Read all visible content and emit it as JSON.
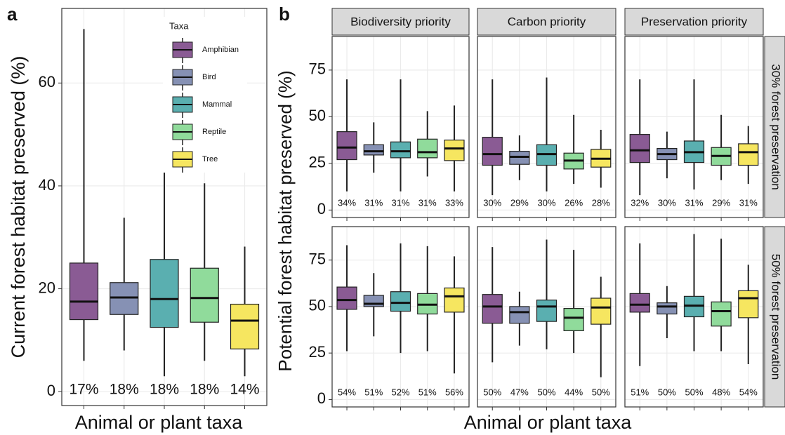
{
  "chart_data": [
    {
      "type": "box",
      "panel_label": "a",
      "ylabel": "Current forest habitat preserved (%)",
      "xlabel": "Animal or plant taxa",
      "legend_title": "Taxa",
      "categories": [
        "Amphibian",
        "Bird",
        "Mammal",
        "Reptile",
        "Tree"
      ],
      "colors": [
        "#8a5b94",
        "#8691b4",
        "#5aafb0",
        "#90db9b",
        "#f6e660"
      ],
      "stats": [
        [
          6,
          14,
          17.5,
          25,
          70.5
        ],
        [
          8,
          15,
          18.3,
          21.2,
          33.8
        ],
        [
          3,
          12.5,
          18,
          25.7,
          56.5
        ],
        [
          6,
          13.5,
          18.2,
          24,
          40.5
        ],
        [
          3,
          8.3,
          13.8,
          17,
          28.2
        ]
      ],
      "means": [
        17,
        18,
        18,
        18,
        14
      ],
      "value_labels": [
        "17%",
        "18%",
        "18%",
        "18%",
        "14%"
      ],
      "ylim": [
        -2.7,
        74.5
      ],
      "yticks": [
        0,
        20,
        40,
        60
      ],
      "grid": true
    },
    {
      "type": "box-facets",
      "panel_label": "b",
      "ylabel": "Potential forest habitat preserved (%)",
      "xlabel": "Animal or plant taxa",
      "columns": [
        "Biodiversity priority",
        "Carbon priority",
        "Preservation priority"
      ],
      "rows": [
        "30% forest preservation",
        "50% forest preservation"
      ],
      "ylim": [
        -4,
        93
      ],
      "yticks": [
        0,
        25,
        50,
        75
      ],
      "grid": true,
      "facets": [
        {
          "stats": [
            [
              10,
              27,
              33.5,
              42,
              70
            ],
            [
              20,
              29.5,
              31.5,
              35,
              47
            ],
            [
              10,
              28,
              31.5,
              36.5,
              70
            ],
            [
              18,
              28,
              31,
              38,
              53
            ],
            [
              10,
              26.5,
              33,
              37.5,
              56
            ]
          ],
          "means": [
            34,
            31,
            31,
            31,
            33
          ],
          "value_labels": [
            "34%",
            "31%",
            "31%",
            "31%",
            "33%"
          ]
        },
        {
          "stats": [
            [
              8,
              24,
              30,
              39,
              70
            ],
            [
              16,
              24.5,
              28.5,
              31.5,
              40
            ],
            [
              10,
              24,
              30,
              35,
              71
            ],
            [
              14,
              22,
              26.5,
              30.5,
              51
            ],
            [
              12,
              23,
              27.5,
              32.5,
              43
            ]
          ],
          "means": [
            30,
            29,
            30,
            26,
            28
          ],
          "value_labels": [
            "30%",
            "29%",
            "30%",
            "26%",
            "28%"
          ]
        },
        {
          "stats": [
            [
              8,
              25.5,
              32,
              40.5,
              70
            ],
            [
              17,
              27,
              30,
              33,
              42
            ],
            [
              11,
              25.5,
              31,
              37,
              70
            ],
            [
              16,
              24,
              29,
              33.5,
              51
            ],
            [
              14,
              24,
              31,
              35.5,
              45
            ]
          ],
          "means": [
            32,
            30,
            31,
            29,
            31
          ],
          "value_labels": [
            "32%",
            "30%",
            "31%",
            "29%",
            "31%"
          ]
        },
        {
          "stats": [
            [
              26,
              48.5,
              53.5,
              60.5,
              83
            ],
            [
              34,
              50,
              51.5,
              56,
              68
            ],
            [
              25,
              47.5,
              52,
              58,
              84
            ],
            [
              26,
              46,
              51,
              57,
              82.5
            ],
            [
              14,
              47,
              55.5,
              60,
              77
            ]
          ],
          "means": [
            54,
            51,
            52,
            51,
            56
          ],
          "value_labels": [
            "54%",
            "51%",
            "52%",
            "51%",
            "56%"
          ]
        },
        {
          "stats": [
            [
              20,
              41,
              50,
              56.5,
              82
            ],
            [
              29,
              41,
              47,
              50,
              58
            ],
            [
              27,
              42,
              50,
              53.5,
              86
            ],
            [
              25,
              37,
              44,
              49,
              80.5
            ],
            [
              12,
              40.5,
              49.5,
              54.5,
              66
            ]
          ],
          "means": [
            50,
            47,
            50,
            44,
            50
          ],
          "value_labels": [
            "50%",
            "47%",
            "50%",
            "44%",
            "50%"
          ]
        },
        {
          "stats": [
            [
              18,
              47,
              51,
              57,
              84
            ],
            [
              33,
              46,
              50,
              52,
              61
            ],
            [
              26,
              44.5,
              50.5,
              55.5,
              89
            ],
            [
              26,
              39.5,
              47.5,
              52.5,
              86.5
            ],
            [
              19,
              44,
              54.5,
              58.5,
              72.5
            ]
          ],
          "means": [
            51,
            50,
            50,
            48,
            54
          ],
          "value_labels": [
            "51%",
            "50%",
            "50%",
            "48%",
            "54%"
          ]
        }
      ]
    }
  ]
}
